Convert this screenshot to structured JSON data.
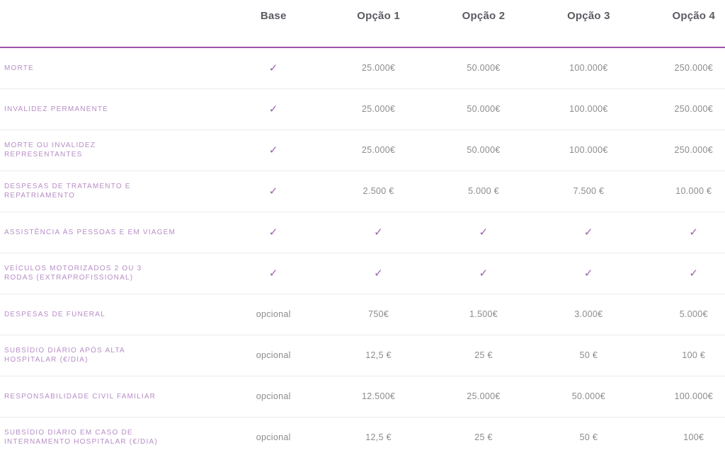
{
  "colors": {
    "accent_line": "#9b55a6",
    "row_label": "#b78dc6",
    "check": "#9c5fae",
    "header_text": "#5d5961",
    "value_text": "#8c8c8e",
    "divider": "#ebebeb",
    "background": "#ffffff"
  },
  "icons": {
    "check": "✓"
  },
  "table": {
    "columns": [
      "",
      "Base",
      "Opção 1",
      "Opção 2",
      "Opção 3",
      "Opção 4"
    ],
    "rows": [
      {
        "label": "MORTE",
        "cells": [
          "check",
          "25.000€",
          "50.000€",
          "100.000€",
          "250.000€"
        ]
      },
      {
        "label": "INVALIDEZ PERMANENTE",
        "cells": [
          "check",
          "25.000€",
          "50.000€",
          "100.000€",
          "250.000€"
        ]
      },
      {
        "label": "MORTE OU INVALIDEZ\nREPRESENTANTES",
        "cells": [
          "check",
          "25.000€",
          "50.000€",
          "100.000€",
          "250.000€"
        ]
      },
      {
        "label": "DESPESAS DE TRATAMENTO E\nREPATRIAMENTO",
        "cells": [
          "check",
          "2.500 €",
          "5.000 €",
          "7.500 €",
          "10.000 €"
        ]
      },
      {
        "label": "ASSISTÊNCIA ÀS PESSOAS E EM VIAGEM",
        "cells": [
          "check",
          "check",
          "check",
          "check",
          "check"
        ]
      },
      {
        "label": "VEÍCULOS MOTORIZADOS 2 OU 3\nRODAS (EXTRAPROFISSIONAL)",
        "cells": [
          "check",
          "check",
          "check",
          "check",
          "check"
        ]
      },
      {
        "label": "DESPESAS DE FUNERAL",
        "cells": [
          "opcional",
          "750€",
          "1.500€",
          "3.000€",
          "5.000€"
        ]
      },
      {
        "label": "SUBSÍDIO DIÁRIO APÓS ALTA\nHOSPITALAR (€/DIA)",
        "cells": [
          "opcional",
          "12,5 €",
          "25 €",
          "50 €",
          "100 €"
        ]
      },
      {
        "label": "RESPONSABILIDADE CIVIL FAMILIAR",
        "cells": [
          "opcional",
          "12.500€",
          "25.000€",
          "50.000€",
          "100.000€"
        ]
      },
      {
        "label": "SUBSÍDIO DIÁRIO EM CASO DE\nINTERNAMENTO HOSPITALAR (€/DIA)",
        "cells": [
          "opcional",
          "12,5 €",
          "25 €",
          "50 €",
          "100€"
        ]
      }
    ]
  }
}
